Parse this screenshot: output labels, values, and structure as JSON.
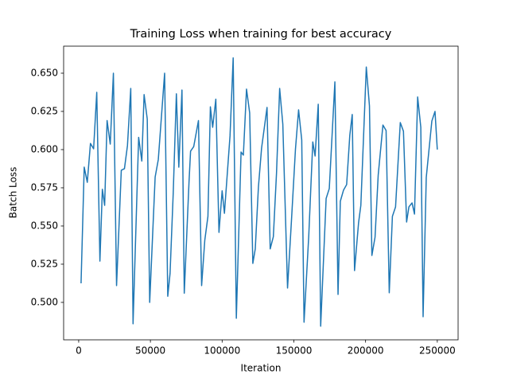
{
  "chart_data": {
    "type": "line",
    "title": "Training Loss when training for best accuracy",
    "x_label": "Iteration",
    "y_label": "Batch Loss",
    "color": "#1f77b4",
    "x": [
      1650,
      3850,
      6000,
      8200,
      10400,
      12600,
      14800,
      16500,
      18100,
      19800,
      22000,
      24200,
      26400,
      29700,
      31900,
      34000,
      36300,
      37900,
      41800,
      44000,
      45600,
      47800,
      49500,
      53300,
      55500,
      59900,
      62100,
      63700,
      65900,
      68100,
      69800,
      72000,
      73600,
      76900,
      78000,
      80200,
      83500,
      85700,
      87900,
      90100,
      91800,
      93400,
      95600,
      97800,
      100000,
      101600,
      105500,
      107700,
      109900,
      113200,
      114800,
      117000,
      119200,
      121400,
      123100,
      125300,
      127500,
      131300,
      133500,
      135700,
      137900,
      140100,
      142300,
      145600,
      148400,
      151100,
      153300,
      155500,
      157100,
      160400,
      163200,
      164800,
      167000,
      168700,
      172500,
      174700,
      178600,
      180800,
      182400,
      184600,
      186800,
      189000,
      190700,
      192300,
      195100,
      196700,
      200500,
      202700,
      204400,
      206600,
      208800,
      212100,
      214300,
      216500,
      218700,
      220900,
      224200,
      226400,
      228600,
      230200,
      232400,
      234100,
      236300,
      238500,
      240100,
      242300,
      246200,
      248400,
      250000
    ],
    "values": [
      0.5125,
      0.5885,
      0.5786,
      0.604,
      0.6005,
      0.6375,
      0.527,
      0.574,
      0.5635,
      0.619,
      0.6036,
      0.65,
      0.511,
      0.5865,
      0.5875,
      0.6026,
      0.64,
      0.486,
      0.608,
      0.5925,
      0.636,
      0.62,
      0.5,
      0.582,
      0.5935,
      0.65,
      0.504,
      0.519,
      0.5715,
      0.6365,
      0.5885,
      0.639,
      0.506,
      0.5786,
      0.599,
      0.602,
      0.619,
      0.511,
      0.5406,
      0.5563,
      0.628,
      0.6146,
      0.633,
      0.5458,
      0.573,
      0.5583,
      0.609,
      0.66,
      0.4896,
      0.5984,
      0.5964,
      0.6396,
      0.624,
      0.5255,
      0.535,
      0.5755,
      0.601,
      0.6276,
      0.535,
      0.543,
      0.5844,
      0.64,
      0.6167,
      0.5094,
      0.5547,
      0.6,
      0.626,
      0.6063,
      0.487,
      0.5438,
      0.605,
      0.5958,
      0.6297,
      0.4844,
      0.568,
      0.5745,
      0.6443,
      0.5052,
      0.5662,
      0.5734,
      0.5771,
      0.6094,
      0.623,
      0.5208,
      0.552,
      0.5635,
      0.654,
      0.6286,
      0.5307,
      0.5427,
      0.5833,
      0.6161,
      0.6125,
      0.5063,
      0.5563,
      0.5625,
      0.6177,
      0.612,
      0.5526,
      0.5625,
      0.5651,
      0.5578,
      0.6344,
      0.6146,
      0.4906,
      0.5818,
      0.6187,
      0.625,
      0.6
    ],
    "xlim": [
      -10500,
      264500
    ],
    "ylim": [
      0.4755,
      0.6677
    ],
    "xticks": [
      0,
      50000,
      100000,
      150000,
      200000,
      250000
    ],
    "yticks": [
      {
        "value": 0.5,
        "label": "0.500"
      },
      0.525,
      {
        "value": 0.55,
        "label": "0.550"
      },
      0.575,
      {
        "value": 0.6,
        "label": "0.600"
      },
      0.625,
      {
        "value": 0.65,
        "label": "0.650"
      }
    ]
  }
}
